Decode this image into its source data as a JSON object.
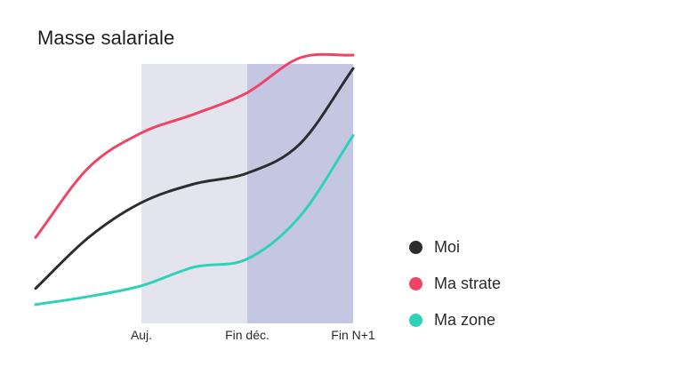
{
  "title": "Masse salariale",
  "legend": [
    {
      "label": "Moi",
      "color": "#2d2d30"
    },
    {
      "label": "Ma strate",
      "color": "#ee4566"
    },
    {
      "label": "Ma zone",
      "color": "#2dd2b8"
    }
  ],
  "chart_data": {
    "type": "line",
    "title": "Masse salariale",
    "xlabel": "",
    "ylabel": "",
    "x_ticks": [
      "Auj.",
      "Fin déc.",
      "Fin N+1"
    ],
    "xlim": [
      -1,
      2
    ],
    "ylim": [
      0,
      100
    ],
    "grid": false,
    "legend_position": "right",
    "shaded_periods": [
      {
        "from": 0,
        "to": 1,
        "color": "#e4e4ee"
      },
      {
        "from": 1,
        "to": 2,
        "color": "#c5c7e2"
      }
    ],
    "x": [
      -1,
      -0.5,
      0,
      0.5,
      1,
      1.5,
      2
    ],
    "series": [
      {
        "name": "Moi",
        "color": "#2d2d30",
        "values": [
          13,
          32,
          45,
          52,
          56,
          67,
          95
        ]
      },
      {
        "name": "Ma strate",
        "color": "#ee4566",
        "values": [
          32,
          58,
          71,
          78,
          86,
          99,
          100
        ]
      },
      {
        "name": "Ma zone",
        "color": "#2dd2b8",
        "values": [
          7,
          10,
          14,
          21,
          24,
          40,
          70
        ]
      }
    ]
  }
}
